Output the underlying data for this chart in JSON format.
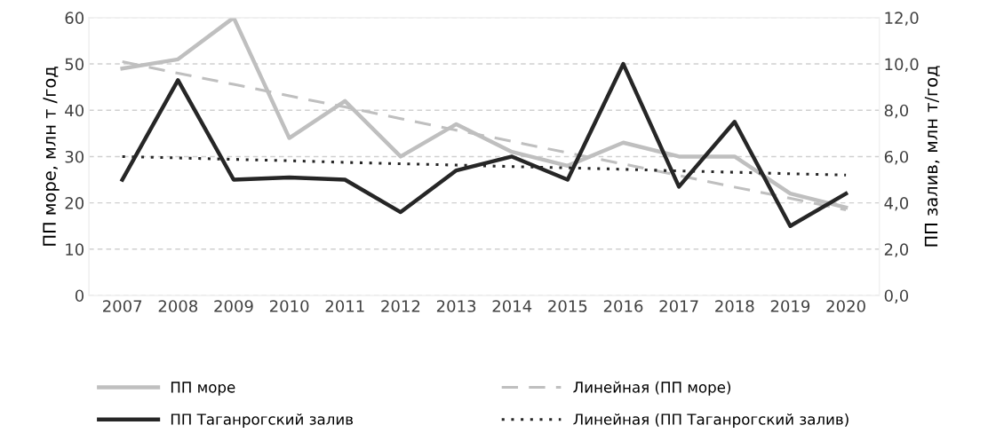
{
  "chart_data": {
    "type": "line",
    "categories": [
      "2007",
      "2008",
      "2009",
      "2010",
      "2011",
      "2012",
      "2013",
      "2014",
      "2015",
      "2016",
      "2017",
      "2018",
      "2019",
      "2020"
    ],
    "ylabel": "ПП море, млн т /год",
    "y2label": "ПП залив, млн т/год",
    "ylim": [
      0,
      60
    ],
    "yticks": [
      0,
      10,
      20,
      30,
      40,
      50,
      60
    ],
    "y2lim": [
      0,
      12
    ],
    "y2ticks": [
      {
        "value": 0,
        "label": "0,0"
      },
      {
        "value": 2,
        "label": "2,0"
      },
      {
        "value": 4,
        "label": "4,0"
      },
      {
        "value": 6,
        "label": "6,0"
      },
      {
        "value": 8,
        "label": "8,0"
      },
      {
        "value": 10,
        "label": "10,0"
      },
      {
        "value": 12,
        "label": "12,0"
      }
    ],
    "grid": "y",
    "legend": "bottom",
    "marker": "none",
    "series": [
      {
        "name": "ПП море",
        "color": "#bfbfbf",
        "line_style": "solid",
        "values": [
          49,
          51,
          60,
          34,
          42,
          30,
          37,
          31,
          28,
          33,
          30,
          30,
          22,
          19
        ]
      },
      {
        "name": "ПП Таганрогский залив",
        "color": "#262626",
        "line_style": "solid",
        "axis": "y2",
        "values": [
          5.0,
          9.3,
          5.0,
          5.1,
          5.0,
          3.6,
          5.4,
          6.0,
          5.0,
          10.0,
          4.7,
          7.5,
          3.0,
          4.4
        ]
      },
      {
        "name": "Линейная (ПП море)",
        "color": "#bfbfbf",
        "line_style": "dashed",
        "values": [
          50.5,
          48.0,
          45.6,
          43.1,
          40.7,
          38.2,
          35.7,
          33.3,
          30.8,
          28.4,
          25.9,
          23.4,
          21.0,
          18.5
        ]
      },
      {
        "name": "Линейная (ПП Таганрогский залив)",
        "color": "#262626",
        "line_style": "dotted",
        "axis": "y2",
        "values": [
          6.0,
          5.94,
          5.88,
          5.82,
          5.75,
          5.69,
          5.63,
          5.57,
          5.51,
          5.45,
          5.38,
          5.32,
          5.26,
          5.2
        ]
      }
    ]
  }
}
